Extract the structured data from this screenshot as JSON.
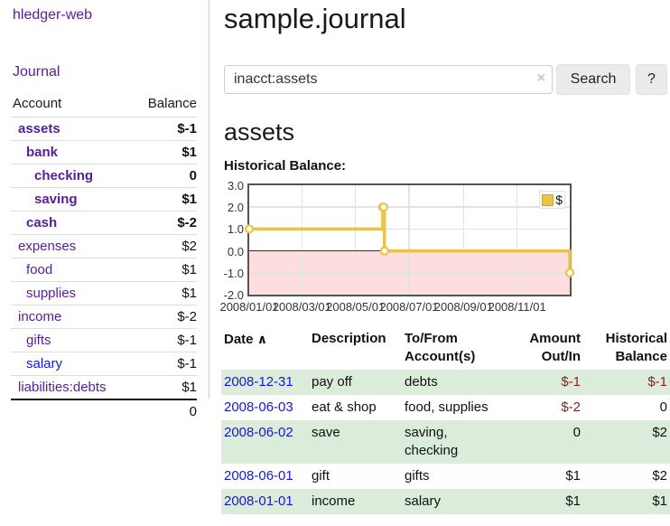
{
  "app": {
    "title": "hledger-web"
  },
  "nav": {
    "journal": "Journal"
  },
  "sidebar": {
    "columns": {
      "account": "Account",
      "balance": "Balance"
    },
    "accounts": [
      {
        "name": "assets",
        "balance": "$-1"
      },
      {
        "name": "bank",
        "balance": "$1"
      },
      {
        "name": "checking",
        "balance": "0"
      },
      {
        "name": "saving",
        "balance": "$1"
      },
      {
        "name": "cash",
        "balance": "$-2"
      },
      {
        "name": "expenses",
        "balance": "$2"
      },
      {
        "name": "food",
        "balance": "$1"
      },
      {
        "name": "supplies",
        "balance": "$1"
      },
      {
        "name": "income",
        "balance": "$-2"
      },
      {
        "name": "gifts",
        "balance": "$-1"
      },
      {
        "name": "salary",
        "balance": "$-1"
      },
      {
        "name": "liabilities:debts",
        "balance": "$1"
      }
    ],
    "total": "0"
  },
  "main": {
    "title": "sample.journal",
    "search": {
      "value": "inacct:assets",
      "clear_icon": "×",
      "search_button": "Search",
      "help_button": "?"
    },
    "account_heading": "assets",
    "chart_title": "Historical Balance:"
  },
  "chart_data": {
    "type": "line",
    "step": true,
    "title": "Historical Balance",
    "legend": "$",
    "legend_position": "top-right",
    "ylim": [
      -2,
      3
    ],
    "yticks": [
      {
        "value": 3,
        "label": "3.0"
      },
      {
        "value": 2,
        "label": "2.0"
      },
      {
        "value": 1,
        "label": "1.0"
      },
      {
        "value": 0,
        "label": "0.0"
      },
      {
        "value": -1,
        "label": "-1.0"
      },
      {
        "value": -2,
        "label": "-2.0"
      }
    ],
    "x_range_days": 365,
    "xticks": [
      {
        "day": 0,
        "label": "2008/01/01"
      },
      {
        "day": 60,
        "label": "2008/03/01"
      },
      {
        "day": 121,
        "label": "2008/05/01"
      },
      {
        "day": 182,
        "label": "2008/07/01"
      },
      {
        "day": 244,
        "label": "2008/09/01"
      },
      {
        "day": 305,
        "label": "2008/11/01"
      }
    ],
    "series": [
      {
        "name": "$",
        "points": [
          {
            "date": "2008-01-01",
            "day": 0,
            "value": 1
          },
          {
            "date": "2008-06-01",
            "day": 152,
            "value": 2
          },
          {
            "date": "2008-06-02",
            "day": 153,
            "value": 2
          },
          {
            "date": "2008-06-03",
            "day": 154,
            "value": 0
          },
          {
            "date": "2008-12-31",
            "day": 365,
            "value": -1
          }
        ]
      }
    ],
    "zero_line": true,
    "negative_region_shaded": true
  },
  "table": {
    "headers": {
      "date": "Date",
      "sort_icon": "∧",
      "description": "Description",
      "accounts": "To/From Account(s)",
      "amount": "Amount Out/In",
      "balance": "Historical Balance"
    },
    "rows": [
      {
        "date": "2008-12-31",
        "description": "pay off",
        "accounts": "debts",
        "amount": "$-1",
        "balance": "$-1"
      },
      {
        "date": "2008-06-03",
        "description": "eat & shop",
        "accounts": "food, supplies",
        "amount": "$-2",
        "balance": "0"
      },
      {
        "date": "2008-06-02",
        "description": "save",
        "accounts": "saving,\nchecking",
        "amount": "0",
        "balance": "$2"
      },
      {
        "date": "2008-06-01",
        "description": "gift",
        "accounts": "gifts",
        "amount": "$1",
        "balance": "$2"
      },
      {
        "date": "2008-01-01",
        "description": "income",
        "accounts": "salary",
        "amount": "$1",
        "balance": "$1"
      }
    ]
  },
  "colors": {
    "link_purple": "#541f96",
    "link_blue": "#1717d6",
    "negative_strong": "#8c1e1e",
    "negative_soft": "#c98585",
    "row_stripe_green": "#dcecdb",
    "chart_line": "#e9c34c",
    "chart_negative_fill": "#fcdede",
    "chart_zero_line": "#9b0000",
    "chart_grid": "#e3e3e3"
  }
}
